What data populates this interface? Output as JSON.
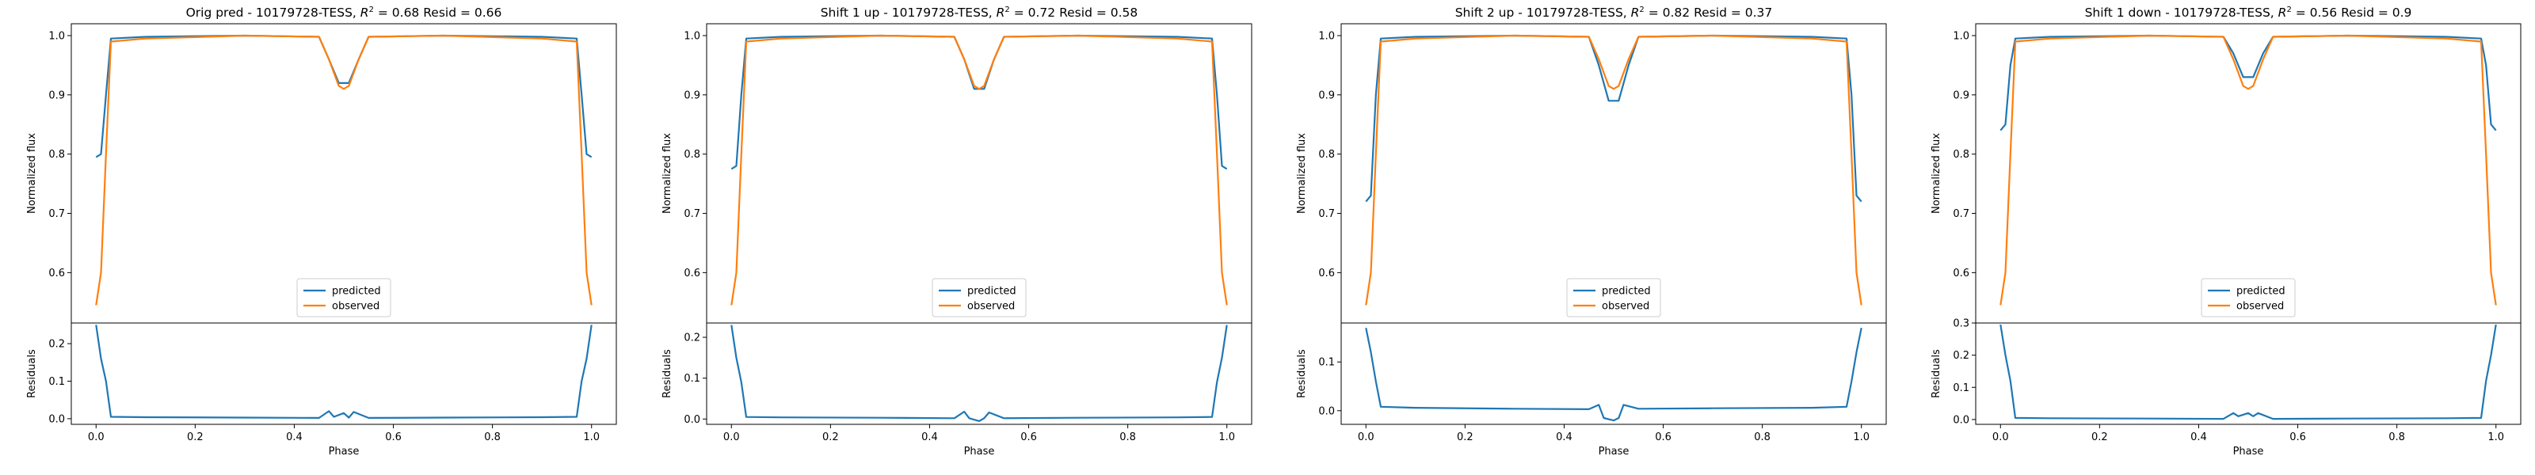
{
  "colors": {
    "predicted": "#1f77b4",
    "observed": "#ff7f0e",
    "axes": "#000000"
  },
  "chart_data": [
    {
      "type": "line",
      "title_prefix": "Orig pred - 10179728-TESS, ",
      "r2_label": "R",
      "r2_exponent": "2",
      "title_suffix": " = 0.68 Resid = 0.66",
      "xlabel": "Phase",
      "ylabel": "Normalized flux",
      "resid_ylabel": "Residuals",
      "xlim": [
        -0.05,
        1.05
      ],
      "ylim": [
        0.515,
        1.02
      ],
      "resid_ylim": [
        -0.015,
        0.255
      ],
      "xticks": [
        0.0,
        0.2,
        0.4,
        0.6,
        0.8,
        1.0
      ],
      "xtick_labels": [
        "0.0",
        "0.2",
        "0.4",
        "0.6",
        "0.8",
        "1.0"
      ],
      "yticks": [
        0.6,
        0.7,
        0.8,
        0.9,
        1.0
      ],
      "ytick_labels": [
        "0.6",
        "0.7",
        "0.8",
        "0.9",
        "1.0"
      ],
      "resid_yticks": [
        0.0,
        0.1,
        0.2
      ],
      "resid_ytick_labels": [
        "0.0",
        "0.1",
        "0.2"
      ],
      "legend": [
        "predicted",
        "observed"
      ],
      "legend_position": "lower center",
      "series": [
        {
          "name": "predicted",
          "x": [
            0.0,
            0.01,
            0.02,
            0.03,
            0.1,
            0.3,
            0.45,
            0.47,
            0.49,
            0.51,
            0.53,
            0.55,
            0.7,
            0.9,
            0.97,
            0.98,
            0.99,
            1.0
          ],
          "y": [
            0.795,
            0.8,
            0.9,
            0.995,
            0.998,
            1.0,
            0.998,
            0.96,
            0.92,
            0.92,
            0.96,
            0.998,
            1.0,
            0.998,
            0.995,
            0.9,
            0.8,
            0.795
          ]
        },
        {
          "name": "observed",
          "x": [
            0.0,
            0.01,
            0.02,
            0.03,
            0.1,
            0.3,
            0.45,
            0.47,
            0.49,
            0.5,
            0.51,
            0.53,
            0.55,
            0.7,
            0.9,
            0.97,
            0.98,
            0.99,
            1.0
          ],
          "y": [
            0.545,
            0.6,
            0.8,
            0.99,
            0.995,
            1.0,
            0.998,
            0.96,
            0.915,
            0.91,
            0.915,
            0.96,
            0.998,
            1.0,
            0.995,
            0.99,
            0.8,
            0.6,
            0.545
          ]
        },
        {
          "name": "residuals",
          "x": [
            0.0,
            0.01,
            0.02,
            0.03,
            0.1,
            0.3,
            0.45,
            0.47,
            0.48,
            0.5,
            0.51,
            0.52,
            0.55,
            0.7,
            0.9,
            0.97,
            0.98,
            0.99,
            1.0
          ],
          "y": [
            0.25,
            0.16,
            0.1,
            0.005,
            0.004,
            0.003,
            0.002,
            0.02,
            0.005,
            0.015,
            0.003,
            0.018,
            0.002,
            0.003,
            0.004,
            0.005,
            0.1,
            0.16,
            0.25
          ]
        }
      ]
    },
    {
      "type": "line",
      "title_prefix": "Shift 1 up - 10179728-TESS, ",
      "r2_label": "R",
      "r2_exponent": "2",
      "title_suffix": " = 0.72 Resid = 0.58",
      "xlabel": "Phase",
      "ylabel": "Normalized flux",
      "resid_ylabel": "Residuals",
      "xlim": [
        -0.05,
        1.05
      ],
      "ylim": [
        0.515,
        1.02
      ],
      "resid_ylim": [
        -0.013,
        0.235
      ],
      "xticks": [
        0.0,
        0.2,
        0.4,
        0.6,
        0.8,
        1.0
      ],
      "xtick_labels": [
        "0.0",
        "0.2",
        "0.4",
        "0.6",
        "0.8",
        "1.0"
      ],
      "yticks": [
        0.6,
        0.7,
        0.8,
        0.9,
        1.0
      ],
      "ytick_labels": [
        "0.6",
        "0.7",
        "0.8",
        "0.9",
        "1.0"
      ],
      "resid_yticks": [
        0.0,
        0.1,
        0.2
      ],
      "resid_ytick_labels": [
        "0.0",
        "0.1",
        "0.2"
      ],
      "legend": [
        "predicted",
        "observed"
      ],
      "legend_position": "lower center",
      "series": [
        {
          "name": "predicted",
          "x": [
            0.0,
            0.01,
            0.02,
            0.03,
            0.1,
            0.3,
            0.45,
            0.47,
            0.49,
            0.51,
            0.53,
            0.55,
            0.7,
            0.9,
            0.97,
            0.98,
            0.99,
            1.0
          ],
          "y": [
            0.775,
            0.78,
            0.9,
            0.995,
            0.998,
            1.0,
            0.998,
            0.96,
            0.91,
            0.91,
            0.96,
            0.998,
            1.0,
            0.998,
            0.995,
            0.9,
            0.78,
            0.775
          ]
        },
        {
          "name": "observed",
          "x": [
            0.0,
            0.01,
            0.02,
            0.03,
            0.1,
            0.3,
            0.45,
            0.47,
            0.49,
            0.5,
            0.51,
            0.53,
            0.55,
            0.7,
            0.9,
            0.97,
            0.98,
            0.99,
            1.0
          ],
          "y": [
            0.545,
            0.6,
            0.8,
            0.99,
            0.995,
            1.0,
            0.998,
            0.96,
            0.915,
            0.91,
            0.915,
            0.96,
            0.998,
            1.0,
            0.995,
            0.99,
            0.8,
            0.6,
            0.545
          ]
        },
        {
          "name": "residuals",
          "x": [
            0.0,
            0.01,
            0.02,
            0.03,
            0.1,
            0.3,
            0.45,
            0.47,
            0.48,
            0.5,
            0.51,
            0.52,
            0.55,
            0.7,
            0.9,
            0.97,
            0.98,
            0.99,
            1.0
          ],
          "y": [
            0.23,
            0.15,
            0.09,
            0.005,
            0.004,
            0.003,
            0.002,
            0.018,
            0.002,
            -0.005,
            0.002,
            0.016,
            0.002,
            0.003,
            0.004,
            0.005,
            0.09,
            0.15,
            0.23
          ]
        }
      ]
    },
    {
      "type": "line",
      "title_prefix": "Shift 2 up - 10179728-TESS, ",
      "r2_label": "R",
      "r2_exponent": "2",
      "title_suffix": " = 0.82 Resid = 0.37",
      "xlabel": "Phase",
      "ylabel": "Normalized flux",
      "resid_ylabel": "Residuals",
      "xlim": [
        -0.05,
        1.05
      ],
      "ylim": [
        0.515,
        1.02
      ],
      "resid_ylim": [
        -0.028,
        0.18
      ],
      "xticks": [
        0.0,
        0.2,
        0.4,
        0.6,
        0.8,
        1.0
      ],
      "xtick_labels": [
        "0.0",
        "0.2",
        "0.4",
        "0.6",
        "0.8",
        "1.0"
      ],
      "yticks": [
        0.6,
        0.7,
        0.8,
        0.9,
        1.0
      ],
      "ytick_labels": [
        "0.6",
        "0.7",
        "0.8",
        "0.9",
        "1.0"
      ],
      "resid_yticks": [
        0.0,
        0.1
      ],
      "resid_ytick_labels": [
        "0.0",
        "0.1"
      ],
      "legend": [
        "predicted",
        "observed"
      ],
      "legend_position": "lower center",
      "series": [
        {
          "name": "predicted",
          "x": [
            0.0,
            0.01,
            0.02,
            0.03,
            0.1,
            0.3,
            0.45,
            0.47,
            0.49,
            0.51,
            0.53,
            0.55,
            0.7,
            0.9,
            0.97,
            0.98,
            0.99,
            1.0
          ],
          "y": [
            0.72,
            0.73,
            0.9,
            0.995,
            0.998,
            1.0,
            0.998,
            0.95,
            0.89,
            0.89,
            0.95,
            0.998,
            1.0,
            0.998,
            0.995,
            0.9,
            0.73,
            0.72
          ]
        },
        {
          "name": "observed",
          "x": [
            0.0,
            0.01,
            0.02,
            0.03,
            0.1,
            0.3,
            0.45,
            0.47,
            0.49,
            0.5,
            0.51,
            0.53,
            0.55,
            0.7,
            0.9,
            0.97,
            0.98,
            0.99,
            1.0
          ],
          "y": [
            0.545,
            0.6,
            0.8,
            0.99,
            0.995,
            1.0,
            0.998,
            0.96,
            0.915,
            0.91,
            0.915,
            0.96,
            0.998,
            1.0,
            0.995,
            0.99,
            0.8,
            0.6,
            0.545
          ]
        },
        {
          "name": "residuals",
          "x": [
            0.0,
            0.01,
            0.02,
            0.03,
            0.1,
            0.3,
            0.45,
            0.47,
            0.48,
            0.5,
            0.51,
            0.52,
            0.55,
            0.7,
            0.9,
            0.97,
            0.98,
            0.99,
            1.0
          ],
          "y": [
            0.17,
            0.12,
            0.06,
            0.008,
            0.006,
            0.004,
            0.003,
            0.012,
            -0.015,
            -0.02,
            -0.015,
            0.012,
            0.004,
            0.005,
            0.006,
            0.008,
            0.06,
            0.12,
            0.17
          ]
        }
      ]
    },
    {
      "type": "line",
      "title_prefix": "Shift 1 down - 10179728-TESS, ",
      "r2_label": "R",
      "r2_exponent": "2",
      "title_suffix": " = 0.56 Resid = 0.9",
      "xlabel": "Phase",
      "ylabel": "Normalized flux",
      "resid_ylabel": "Residuals",
      "xlim": [
        -0.05,
        1.05
      ],
      "ylim": [
        0.515,
        1.02
      ],
      "resid_ylim": [
        -0.015,
        0.3
      ],
      "xticks": [
        0.0,
        0.2,
        0.4,
        0.6,
        0.8,
        1.0
      ],
      "xtick_labels": [
        "0.0",
        "0.2",
        "0.4",
        "0.6",
        "0.8",
        "1.0"
      ],
      "yticks": [
        0.6,
        0.7,
        0.8,
        0.9,
        1.0
      ],
      "ytick_labels": [
        "0.6",
        "0.7",
        "0.8",
        "0.9",
        "1.0"
      ],
      "resid_yticks": [
        0.0,
        0.1,
        0.2,
        0.3
      ],
      "resid_ytick_labels": [
        "0.0",
        "0.1",
        "0.2",
        "0.3"
      ],
      "legend": [
        "predicted",
        "observed"
      ],
      "legend_position": "lower center",
      "series": [
        {
          "name": "predicted",
          "x": [
            0.0,
            0.01,
            0.02,
            0.03,
            0.1,
            0.3,
            0.45,
            0.47,
            0.49,
            0.51,
            0.53,
            0.55,
            0.7,
            0.9,
            0.97,
            0.98,
            0.99,
            1.0
          ],
          "y": [
            0.84,
            0.85,
            0.95,
            0.995,
            0.998,
            1.0,
            0.998,
            0.97,
            0.93,
            0.93,
            0.97,
            0.998,
            1.0,
            0.998,
            0.995,
            0.95,
            0.85,
            0.84
          ]
        },
        {
          "name": "observed",
          "x": [
            0.0,
            0.01,
            0.02,
            0.03,
            0.1,
            0.3,
            0.45,
            0.47,
            0.49,
            0.5,
            0.51,
            0.53,
            0.55,
            0.7,
            0.9,
            0.97,
            0.98,
            0.99,
            1.0
          ],
          "y": [
            0.545,
            0.6,
            0.8,
            0.99,
            0.995,
            1.0,
            0.998,
            0.96,
            0.915,
            0.91,
            0.915,
            0.96,
            0.998,
            1.0,
            0.995,
            0.99,
            0.8,
            0.6,
            0.545
          ]
        },
        {
          "name": "residuals",
          "x": [
            0.0,
            0.01,
            0.02,
            0.03,
            0.1,
            0.3,
            0.45,
            0.47,
            0.48,
            0.5,
            0.51,
            0.52,
            0.55,
            0.7,
            0.9,
            0.97,
            0.98,
            0.99,
            1.0
          ],
          "y": [
            0.295,
            0.2,
            0.12,
            0.005,
            0.004,
            0.003,
            0.002,
            0.02,
            0.01,
            0.02,
            0.01,
            0.02,
            0.002,
            0.003,
            0.004,
            0.005,
            0.12,
            0.2,
            0.295
          ]
        }
      ]
    }
  ]
}
